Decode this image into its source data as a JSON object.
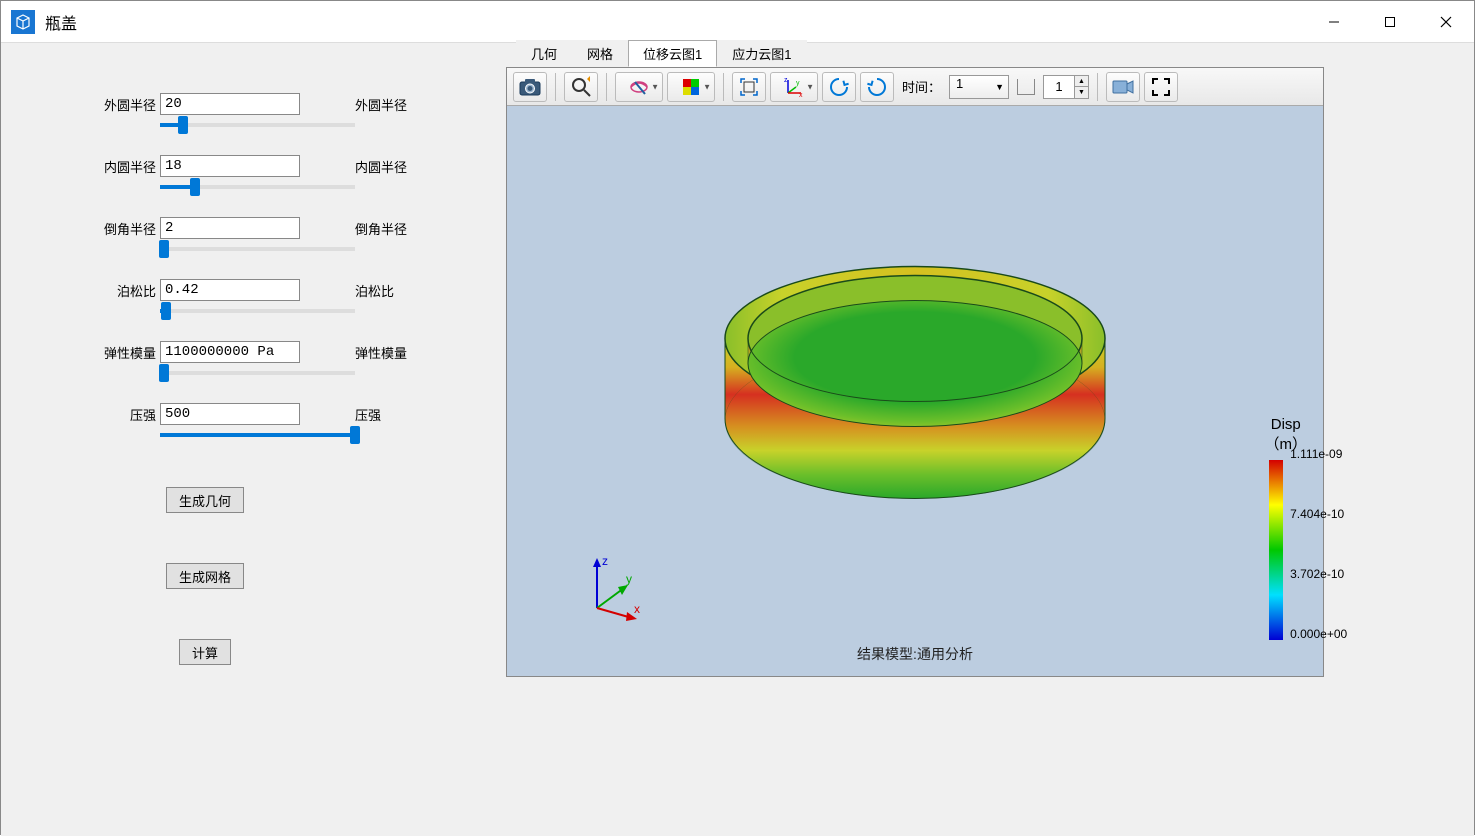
{
  "window": {
    "title": "瓶盖",
    "min_tooltip": "最小化",
    "max_tooltip": "最大化",
    "close_tooltip": "关闭"
  },
  "params": [
    {
      "label": "外圆半径",
      "value": "20",
      "rlabel": "外圆半径",
      "slider_pct": 12
    },
    {
      "label": "内圆半径",
      "value": "18",
      "rlabel": "内圆半径",
      "slider_pct": 18
    },
    {
      "label": "倒角半径",
      "value": "2",
      "rlabel": "倒角半径",
      "slider_pct": 2
    },
    {
      "label": "泊松比",
      "value": "0.42",
      "rlabel": "泊松比",
      "slider_pct": 3
    },
    {
      "label": "弹性模量",
      "value": "1100000000 Pa",
      "rlabel": "弹性模量",
      "slider_pct": 2
    },
    {
      "label": "压强",
      "value": "500",
      "rlabel": "压强",
      "slider_pct": 100
    }
  ],
  "buttons": {
    "gen_geom": "生成几何",
    "gen_mesh": "生成网格",
    "compute": "计算"
  },
  "tabs": [
    {
      "label": "几何",
      "active": false
    },
    {
      "label": "网格",
      "active": false
    },
    {
      "label": "位移云图1",
      "active": true
    },
    {
      "label": "应力云图1",
      "active": false
    }
  ],
  "toolbar": {
    "time_label": "时间：",
    "time_value": "1",
    "frame_value": "1"
  },
  "result": {
    "caption": "结果模型:通用分析",
    "legend_title": "Disp",
    "legend_unit": "（m）",
    "ticks": [
      "1.111e-09",
      "7.404e-10",
      "3.702e-10",
      "0.000e+00"
    ],
    "colorbar_stops": [
      {
        "pct": 0,
        "color": "#d40000"
      },
      {
        "pct": 25,
        "color": "#ffff00"
      },
      {
        "pct": 50,
        "color": "#00c800"
      },
      {
        "pct": 75,
        "color": "#00e0ff"
      },
      {
        "pct": 100,
        "color": "#0000d4"
      }
    ],
    "viewport_bg": "#bccde0"
  },
  "axes": {
    "x": "x",
    "y": "y",
    "z": "z"
  }
}
